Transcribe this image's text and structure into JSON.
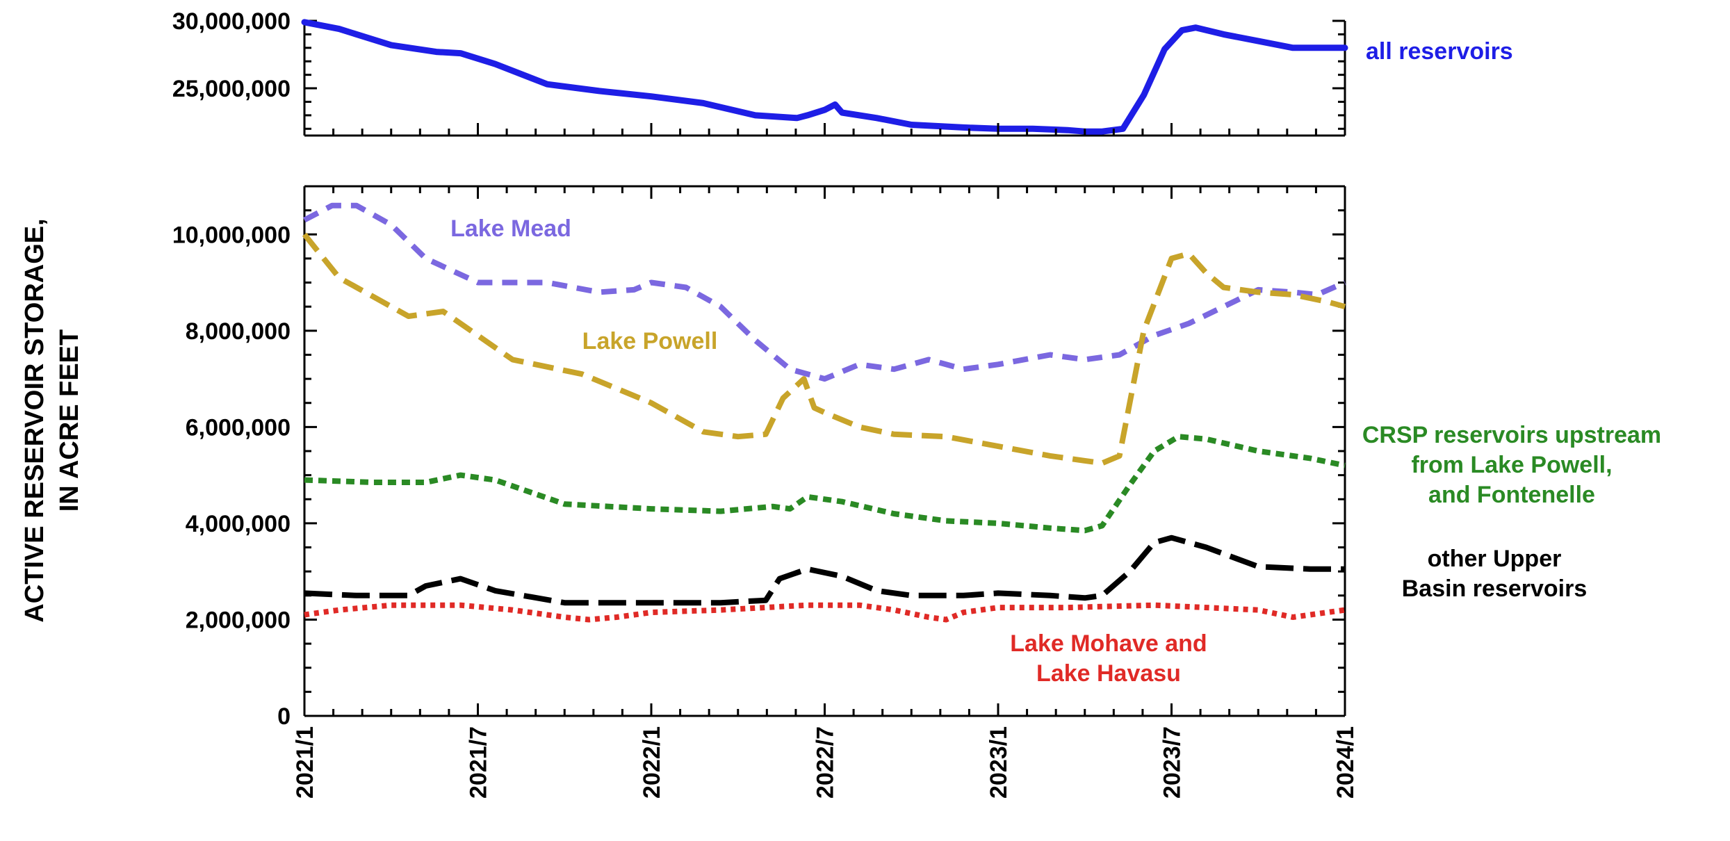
{
  "chart_data": {
    "type": "line",
    "ylabel_lines": [
      "ACTIVE RESERVOIR STORAGE,",
      "IN ACRE FEET"
    ],
    "x_ticks": [
      "2021/1",
      "2021/7",
      "2022/1",
      "2022/7",
      "2023/1",
      "2023/7",
      "2024/1"
    ],
    "x_range": [
      2021.0,
      2024.0
    ],
    "panels": [
      {
        "id": "top",
        "ylim": [
          21500000,
          30000000
        ],
        "y_ticks": [
          {
            "value": 25000000,
            "label": "25,000,000"
          },
          {
            "value": 30000000,
            "label": "30,000,000"
          }
        ],
        "series": [
          {
            "name": "all reservoirs",
            "color": "#1e1ee6",
            "dash": "solid",
            "label_lines": [
              "all reservoirs"
            ],
            "x": [
              2021.0,
              2021.1,
              2021.25,
              2021.38,
              2021.45,
              2021.55,
              2021.7,
              2021.85,
              2022.0,
              2022.15,
              2022.3,
              2022.42,
              2022.45,
              2022.5,
              2022.53,
              2022.55,
              2022.65,
              2022.75,
              2022.9,
              2023.0,
              2023.1,
              2023.2,
              2023.25,
              2023.3,
              2023.36,
              2023.42,
              2023.48,
              2023.53,
              2023.57,
              2023.65,
              2023.75,
              2023.85,
              2024.0
            ],
            "y": [
              29900000,
              29400000,
              28200000,
              27700000,
              27600000,
              26800000,
              25300000,
              24800000,
              24400000,
              23900000,
              23000000,
              22800000,
              23000000,
              23400000,
              23800000,
              23200000,
              22800000,
              22300000,
              22100000,
              22000000,
              22000000,
              21900000,
              21800000,
              21800000,
              22000000,
              24500000,
              27900000,
              29300000,
              29500000,
              29000000,
              28500000,
              28000000,
              28000000
            ]
          }
        ]
      },
      {
        "id": "bottom",
        "ylim": [
          0,
          11000000
        ],
        "y_ticks": [
          {
            "value": 0,
            "label": "0"
          },
          {
            "value": 2000000,
            "label": "2,000,000"
          },
          {
            "value": 4000000,
            "label": "4,000,000"
          },
          {
            "value": 6000000,
            "label": "6,000,000"
          },
          {
            "value": 8000000,
            "label": "8,000,000"
          },
          {
            "value": 10000000,
            "label": "10,000,000"
          }
        ],
        "series": [
          {
            "name": "Lake Mead",
            "color": "#7b68e0",
            "dash": "22 14",
            "label_lines": [
              "Lake Mead"
            ],
            "x": [
              2021.0,
              2021.08,
              2021.15,
              2021.25,
              2021.35,
              2021.5,
              2021.7,
              2021.85,
              2021.95,
              2022.0,
              2022.1,
              2022.2,
              2022.3,
              2022.4,
              2022.5,
              2022.55,
              2022.6,
              2022.7,
              2022.8,
              2022.9,
              2023.0,
              2023.15,
              2023.25,
              2023.35,
              2023.45,
              2023.55,
              2023.65,
              2023.75,
              2023.85,
              2023.92,
              2024.0
            ],
            "y": [
              10300000,
              10600000,
              10600000,
              10200000,
              9500000,
              9000000,
              9000000,
              8800000,
              8850000,
              9000000,
              8900000,
              8500000,
              7800000,
              7200000,
              7000000,
              7150000,
              7300000,
              7200000,
              7400000,
              7200000,
              7300000,
              7500000,
              7400000,
              7500000,
              7900000,
              8150000,
              8500000,
              8850000,
              8800000,
              8750000,
              9000000
            ]
          },
          {
            "name": "Lake Powell",
            "color": "#c8a42a",
            "dash": "30 14",
            "label_lines": [
              "Lake Powell"
            ],
            "x": [
              2021.0,
              2021.1,
              2021.2,
              2021.3,
              2021.4,
              2021.5,
              2021.6,
              2021.8,
              2022.0,
              2022.15,
              2022.25,
              2022.33,
              2022.38,
              2022.44,
              2022.47,
              2022.5,
              2022.6,
              2022.7,
              2022.85,
              2023.0,
              2023.15,
              2023.25,
              2023.3,
              2023.35,
              2023.42,
              2023.5,
              2023.55,
              2023.6,
              2023.65,
              2023.75,
              2023.85,
              2023.95,
              2024.0
            ],
            "y": [
              10000000,
              9100000,
              8700000,
              8300000,
              8400000,
              7900000,
              7400000,
              7100000,
              6500000,
              5900000,
              5800000,
              5850000,
              6600000,
              7000000,
              6400000,
              6300000,
              6000000,
              5850000,
              5800000,
              5600000,
              5400000,
              5300000,
              5250000,
              5400000,
              8000000,
              9500000,
              9600000,
              9200000,
              8900000,
              8800000,
              8750000,
              8600000,
              8500000
            ]
          },
          {
            "name": "CRSP reservoirs upstream from Lake Powell, and Fontenelle",
            "color": "#2a8a24",
            "dash": "12 8",
            "label_lines": [
              "CRSP reservoirs upstream",
              "from Lake Powell,",
              "and Fontenelle"
            ],
            "x": [
              2021.0,
              2021.2,
              2021.35,
              2021.45,
              2021.55,
              2021.75,
              2022.0,
              2022.2,
              2022.35,
              2022.4,
              2022.45,
              2022.55,
              2022.7,
              2022.85,
              2023.0,
              2023.15,
              2023.25,
              2023.3,
              2023.38,
              2023.45,
              2023.52,
              2023.6,
              2023.75,
              2023.9,
              2024.0
            ],
            "y": [
              4900000,
              4850000,
              4850000,
              5000000,
              4900000,
              4400000,
              4300000,
              4250000,
              4350000,
              4300000,
              4550000,
              4450000,
              4200000,
              4050000,
              4000000,
              3900000,
              3850000,
              3950000,
              4800000,
              5500000,
              5800000,
              5750000,
              5500000,
              5350000,
              5200000
            ]
          },
          {
            "name": "other Upper Basin reservoirs",
            "color": "#000000",
            "dash": "40 14",
            "label_lines": [
              "other Upper",
              "Basin reservoirs"
            ],
            "x": [
              2021.0,
              2021.15,
              2021.3,
              2021.35,
              2021.45,
              2021.55,
              2021.75,
              2022.0,
              2022.2,
              2022.33,
              2022.37,
              2022.45,
              2022.55,
              2022.65,
              2022.75,
              2022.9,
              2023.0,
              2023.15,
              2023.25,
              2023.3,
              2023.38,
              2023.45,
              2023.5,
              2023.6,
              2023.75,
              2023.9,
              2024.0
            ],
            "y": [
              2550000,
              2500000,
              2500000,
              2700000,
              2850000,
              2600000,
              2350000,
              2350000,
              2350000,
              2400000,
              2850000,
              3050000,
              2900000,
              2600000,
              2500000,
              2500000,
              2550000,
              2500000,
              2450000,
              2500000,
              3000000,
              3600000,
              3700000,
              3500000,
              3100000,
              3050000,
              3050000
            ]
          },
          {
            "name": "Lake Mohave and Lake Havasu",
            "color": "#e02a26",
            "dash": "7 7",
            "label_lines": [
              "Lake Mohave and",
              "Lake Havasu"
            ],
            "x": [
              2021.0,
              2021.1,
              2021.25,
              2021.45,
              2021.6,
              2021.75,
              2021.82,
              2021.9,
              2022.0,
              2022.2,
              2022.45,
              2022.6,
              2022.7,
              2022.8,
              2022.85,
              2022.9,
              2023.0,
              2023.2,
              2023.45,
              2023.6,
              2023.75,
              2023.85,
              2023.9,
              2024.0
            ],
            "y": [
              2100000,
              2200000,
              2300000,
              2300000,
              2200000,
              2050000,
              2000000,
              2050000,
              2150000,
              2200000,
              2300000,
              2300000,
              2200000,
              2050000,
              2000000,
              2150000,
              2250000,
              2250000,
              2300000,
              2250000,
              2200000,
              2050000,
              2100000,
              2200000
            ]
          }
        ]
      }
    ]
  }
}
